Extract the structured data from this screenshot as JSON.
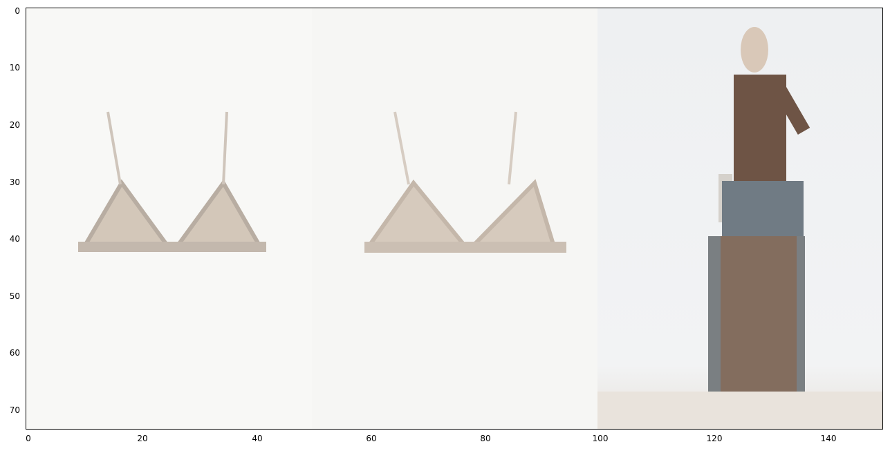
{
  "figure": {
    "x_ticks": [
      "0",
      "20",
      "40",
      "60",
      "80",
      "100",
      "120",
      "140"
    ],
    "y_ticks": [
      "0",
      "10",
      "20",
      "30",
      "40",
      "50",
      "60",
      "70"
    ],
    "x_range": [
      -0.5,
      149.5
    ],
    "y_range": [
      -0.5,
      73.5
    ]
  },
  "panels": [
    {
      "name": "bra-product-front",
      "description": "beige triangle bra on white background"
    },
    {
      "name": "bra-product-back",
      "description": "beige triangle bra, second view"
    },
    {
      "name": "model-wearing-outfit",
      "description": "model in sheer brown top and denim skirt"
    }
  ]
}
